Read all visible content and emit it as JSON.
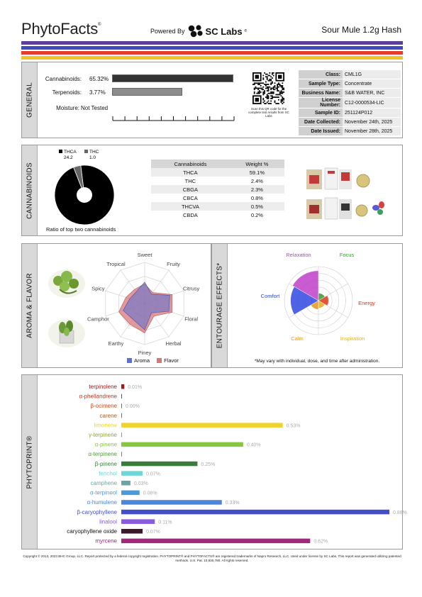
{
  "header": {
    "brand": "PhytoFacts",
    "brand_mark": "®",
    "powered_by": "Powered By",
    "lab_name": "SC Labs",
    "lab_mark": "®",
    "product_name": "Sour Mule 1.2g Hash"
  },
  "stripe_colors": [
    "#5b3f9b",
    "#3f4bb8",
    "#e23d30",
    "#f2c225"
  ],
  "general": {
    "section_label": "GENERAL",
    "cannabinoids_label": "Cannabinoids:",
    "cannabinoids_value": "65.32%",
    "cannabinoids_fraction": 0.653,
    "terpenoids_label": "Terpenoids:",
    "terpenoids_value": "3.77%",
    "terpenoids_fraction": 0.377,
    "moisture_label": "Moisture:",
    "moisture_value": "Not Tested",
    "qr_caption": "Scan this QR code for the complete test results from SC Labs",
    "info": [
      {
        "key": "Class:",
        "value": "CML1G"
      },
      {
        "key": "Sample Type:",
        "value": "Concentrate"
      },
      {
        "key": "Business Name:",
        "value": "S&B WATER, INC"
      },
      {
        "key": "License Number:",
        "value": "C12-0000534-LIC"
      },
      {
        "key": "Sample ID:",
        "value": "251124P012"
      },
      {
        "key": "Date Collected:",
        "value": "November 24th, 2025"
      },
      {
        "key": "Date Issued:",
        "value": "November 28th, 2025"
      }
    ]
  },
  "cannabinoids": {
    "section_label": "CANNABINOIDS",
    "pie": {
      "legend": [
        {
          "name": "THCA",
          "value": "24.2",
          "color": "#000000"
        },
        {
          "name": "THC",
          "value": "1.0",
          "color": "#666666"
        }
      ],
      "caption": "Ratio of top two cannabinoids"
    },
    "table_headers": [
      "Cannabinoids",
      "Weight %"
    ],
    "rows": [
      {
        "name": "THCA",
        "weight": "59.1%"
      },
      {
        "name": "THC",
        "weight": "2.4%"
      },
      {
        "name": "CBGA",
        "weight": "2.3%"
      },
      {
        "name": "CBCA",
        "weight": "0.8%"
      },
      {
        "name": "THCVA",
        "weight": "0.5%"
      },
      {
        "name": "CBDA",
        "weight": "0.2%"
      }
    ]
  },
  "aroma": {
    "section_label": "AROMA & FLAVOR",
    "axes": [
      "Sweet",
      "Fruity",
      "Citrusy",
      "Floral",
      "Herbal",
      "Piney",
      "Earthy",
      "Camphor",
      "Spicy",
      "Tropical"
    ],
    "aroma_values": [
      0.52,
      0.28,
      0.64,
      0.62,
      0.28,
      0.64,
      0.48,
      0.55,
      0.38,
      0.35
    ],
    "flavor_values": [
      0.48,
      0.33,
      0.7,
      0.7,
      0.38,
      0.72,
      0.62,
      0.66,
      0.48,
      0.42
    ],
    "legend_aroma": "Aroma",
    "legend_flavor": "Flavor",
    "aroma_color": "#5b6fd6",
    "flavor_color": "#d97777"
  },
  "entourage": {
    "section_label": "ENTOURAGE EFFECTS*",
    "effects": [
      {
        "name": "Relaxation",
        "value": 0.88,
        "color": "#c040c8"
      },
      {
        "name": "Focus",
        "value": 0.22,
        "color": "#3a9a2e"
      },
      {
        "name": "Energy",
        "value": 0.3,
        "color": "#d93a1a"
      },
      {
        "name": "Inspiration",
        "value": 0.22,
        "color": "#e0b020"
      },
      {
        "name": "Calm",
        "value": 0.26,
        "color": "#e69620"
      },
      {
        "name": "Comfort",
        "value": 0.82,
        "color": "#2f48e0"
      }
    ],
    "note": "*May vary with individual, dose, and time after administration."
  },
  "phytoprint": {
    "section_label": "PHYTOPRINT®",
    "max_value": 0.88,
    "terpenes": [
      {
        "name": "terpinolene",
        "value": 0.01,
        "label": "0.01%",
        "color": "#a01b1b"
      },
      {
        "name": "α-phellandrene",
        "value": 0.0,
        "label": "",
        "color": "#c0321d"
      },
      {
        "name": "β-ocimene",
        "value": 0.0,
        "label": "0.00%",
        "color": "#d9471d"
      },
      {
        "name": "carene",
        "value": 0.0,
        "label": "",
        "color": "#b35b16"
      },
      {
        "name": "limonene",
        "value": 0.53,
        "label": "0.53%",
        "color": "#f0d22a"
      },
      {
        "name": "γ-terpinene",
        "value": 0.0,
        "label": "",
        "color": "#8ea83a"
      },
      {
        "name": "α-pinene",
        "value": 0.4,
        "label": "0.40%",
        "color": "#86c840"
      },
      {
        "name": "α-terpinene",
        "value": 0.0,
        "label": "",
        "color": "#4c9a3a"
      },
      {
        "name": "β-pinene",
        "value": 0.25,
        "label": "0.25%",
        "color": "#3a7d3a"
      },
      {
        "name": "fenchol",
        "value": 0.07,
        "label": "0.07%",
        "color": "#6fd6d6"
      },
      {
        "name": "camphene",
        "value": 0.03,
        "label": "0.03%",
        "color": "#6aa4a4"
      },
      {
        "name": "α-terpineol",
        "value": 0.06,
        "label": "0.06%",
        "color": "#4c9ad8"
      },
      {
        "name": "α-humulene",
        "value": 0.33,
        "label": "0.33%",
        "color": "#4b86d8"
      },
      {
        "name": "β-caryophyllene",
        "value": 0.88,
        "label": "0.88%",
        "color": "#4150c8"
      },
      {
        "name": "linalool",
        "value": 0.11,
        "label": "0.11%",
        "color": "#8a5ae0"
      },
      {
        "name": "caryophyllene oxide",
        "value": 0.07,
        "label": "0.07%",
        "color": "#3a1a2a"
      },
      {
        "name": "myrcene",
        "value": 0.62,
        "label": "0.62%",
        "color": "#a02a7a"
      }
    ]
  },
  "footer": "Copyright © 2013, 2023 BHC Group, LLC. Report protected by a federal copyright registration. PHYTOPRINT® and PHYTOFACTS® are registered trademarks of Napro Research, LLC. Used under license by SC Labs. This report was generated utilizing patented methods. U.S. Pat. 10,830,780. All rights reserved."
}
